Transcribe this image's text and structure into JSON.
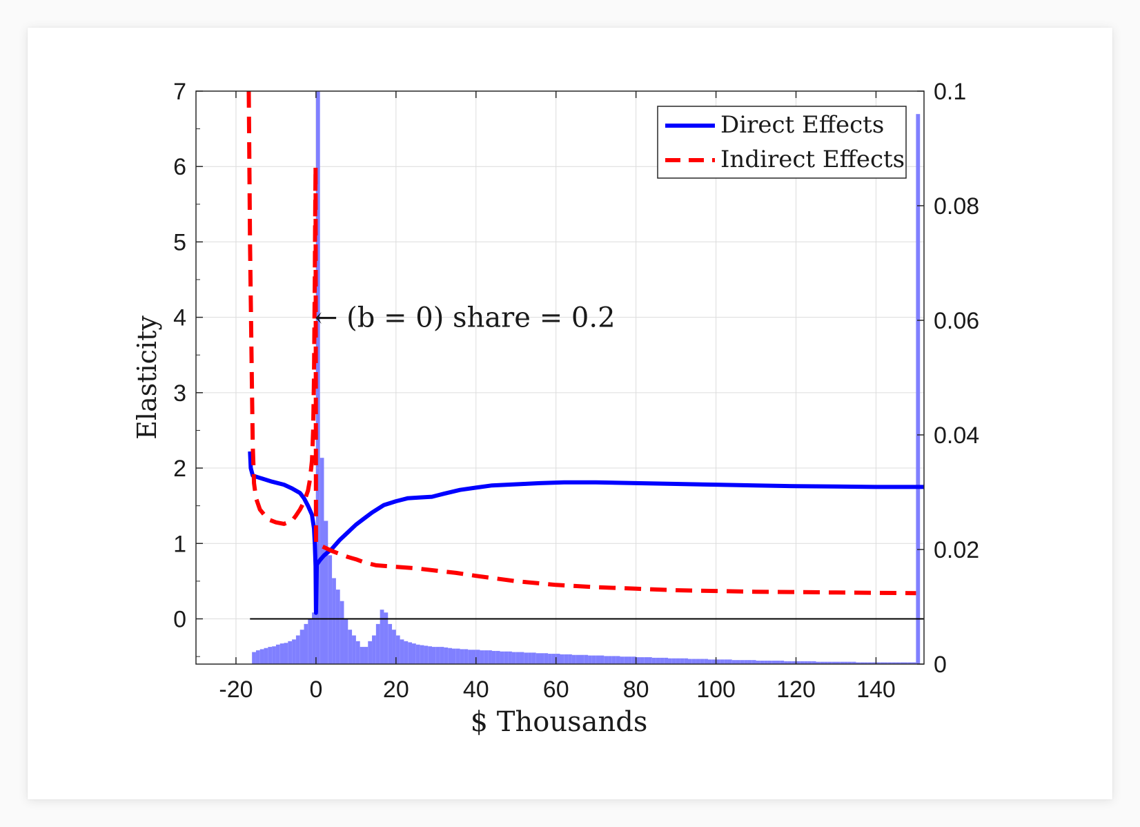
{
  "chart_data": {
    "type": "line",
    "xlabel": "$ Thousands",
    "ylabel": "Elasticity",
    "xlim": [
      -30,
      152
    ],
    "ylim": [
      -0.6,
      7
    ],
    "y2lim": [
      0,
      0.1
    ],
    "grid": true,
    "legend_position": "top-right",
    "x_ticks": [
      "-20",
      "0",
      "20",
      "40",
      "60",
      "80",
      "100",
      "120",
      "140"
    ],
    "y_ticks": [
      "0",
      "1",
      "2",
      "3",
      "4",
      "5",
      "6",
      "7"
    ],
    "y2_ticks": [
      "0",
      "0.02",
      "0.04",
      "0.06",
      "0.08",
      "0.1"
    ],
    "annotation": {
      "text": "← (b = 0) share = 0.2",
      "x": 0,
      "y": 4
    },
    "zero_line": {
      "y": 0,
      "x": [
        -16.5,
        152
      ]
    },
    "colors": {
      "direct": "#0000ff",
      "indirect": "#ff0000",
      "histogram": "#8080ff",
      "zero_line": "#000000"
    },
    "series": [
      {
        "name": "Direct Effects",
        "style": "solid",
        "x": [
          -16.5,
          -16.3,
          -15.8,
          -14,
          -11,
          -8,
          -6,
          -4,
          -3,
          -2,
          -1,
          -0.5,
          -0.3,
          -0.1,
          0,
          0.2,
          1,
          2,
          4,
          6,
          8,
          10,
          12,
          14,
          17,
          20,
          23,
          26,
          29,
          32,
          36,
          40,
          44,
          48,
          52,
          56,
          62,
          70,
          80,
          90,
          100,
          110,
          120,
          130,
          140,
          152
        ],
        "values": [
          2.22,
          2.0,
          1.9,
          1.87,
          1.82,
          1.78,
          1.73,
          1.67,
          1.6,
          1.5,
          1.38,
          1.2,
          1.0,
          0.7,
          0.08,
          0.72,
          0.78,
          0.84,
          0.93,
          1.05,
          1.15,
          1.25,
          1.33,
          1.41,
          1.51,
          1.56,
          1.6,
          1.61,
          1.62,
          1.66,
          1.71,
          1.74,
          1.77,
          1.78,
          1.79,
          1.8,
          1.81,
          1.81,
          1.8,
          1.79,
          1.78,
          1.77,
          1.76,
          1.755,
          1.75,
          1.75
        ]
      },
      {
        "name": "Indirect Effects",
        "style": "dashed",
        "x": [
          -16.8,
          -16.5,
          -16,
          -15.8,
          -15.5,
          -15,
          -14,
          -12,
          -10,
          -8,
          -6,
          -5,
          -4,
          -3,
          -2,
          -1.5,
          -1,
          -0.7,
          -0.5,
          -0.3,
          -0.2,
          -0.1,
          0,
          2,
          4,
          6,
          8,
          10,
          12,
          15,
          20,
          25,
          30,
          35,
          40,
          50,
          60,
          70,
          80,
          90,
          100,
          110,
          120,
          130,
          140,
          150
        ],
        "values": [
          7.0,
          5.0,
          3.0,
          2.3,
          1.8,
          1.6,
          1.45,
          1.32,
          1.28,
          1.26,
          1.3,
          1.37,
          1.45,
          1.55,
          1.7,
          1.85,
          2.1,
          2.5,
          3.2,
          4.5,
          5.3,
          6.0,
          1.0,
          0.95,
          0.9,
          0.86,
          0.82,
          0.79,
          0.75,
          0.71,
          0.69,
          0.67,
          0.64,
          0.61,
          0.57,
          0.5,
          0.45,
          0.42,
          0.4,
          0.38,
          0.37,
          0.36,
          0.355,
          0.35,
          0.345,
          0.34
        ]
      },
      {
        "type": "histogram",
        "axis": "right",
        "bin_width": 1,
        "x": [
          -16,
          -15,
          -14,
          -13,
          -12,
          -11,
          -10,
          -9,
          -8,
          -7,
          -6,
          -5,
          -4,
          -3,
          -2,
          -1,
          0,
          1,
          2,
          3,
          4,
          5,
          6,
          7,
          8,
          9,
          10,
          11,
          12,
          13,
          14,
          15,
          16,
          17,
          18,
          19,
          20,
          21,
          22,
          23,
          24,
          25,
          26,
          27,
          28,
          29,
          30,
          31,
          32,
          33,
          34,
          35,
          36,
          37,
          38,
          39,
          40,
          41,
          42,
          43,
          44,
          45,
          46,
          47,
          48,
          49,
          50,
          51,
          52,
          53,
          54,
          55,
          56,
          57,
          58,
          59,
          60,
          61,
          62,
          63,
          64,
          65,
          66,
          67,
          68,
          69,
          70,
          71,
          72,
          73,
          74,
          75,
          76,
          77,
          78,
          79,
          80,
          81,
          82,
          83,
          84,
          85,
          86,
          87,
          88,
          89,
          90,
          91,
          92,
          93,
          94,
          95,
          96,
          97,
          98,
          99,
          100,
          101,
          102,
          103,
          104,
          105,
          106,
          107,
          108,
          109,
          110,
          111,
          112,
          113,
          114,
          115,
          116,
          117,
          118,
          119,
          120,
          121,
          122,
          123,
          124,
          125,
          126,
          127,
          128,
          129,
          130,
          131,
          132,
          133,
          134,
          135,
          136,
          137,
          138,
          139,
          140,
          141,
          142,
          143,
          144,
          145,
          146,
          147,
          148,
          149,
          150
        ],
        "values": [
          0.0021,
          0.0024,
          0.0026,
          0.0028,
          0.003,
          0.0031,
          0.0034,
          0.0036,
          0.0037,
          0.004,
          0.0043,
          0.005,
          0.006,
          0.007,
          0.008,
          0.009,
          0.1,
          0.036,
          0.025,
          0.019,
          0.015,
          0.013,
          0.011,
          0.008,
          0.006,
          0.005,
          0.004,
          0.003,
          0.003,
          0.004,
          0.005,
          0.007,
          0.0095,
          0.009,
          0.007,
          0.006,
          0.005,
          0.0043,
          0.004,
          0.0038,
          0.0036,
          0.0034,
          0.0033,
          0.0032,
          0.0031,
          0.003,
          0.003,
          0.003,
          0.0029,
          0.0028,
          0.0027,
          0.0027,
          0.0026,
          0.0026,
          0.0025,
          0.0025,
          0.0025,
          0.0024,
          0.0024,
          0.0024,
          0.0023,
          0.0023,
          0.0022,
          0.0022,
          0.0022,
          0.0021,
          0.0021,
          0.0021,
          0.002,
          0.002,
          0.002,
          0.0019,
          0.0019,
          0.0019,
          0.0018,
          0.0018,
          0.0018,
          0.0017,
          0.0017,
          0.0017,
          0.0016,
          0.0016,
          0.0016,
          0.0016,
          0.0015,
          0.0015,
          0.0015,
          0.0015,
          0.0014,
          0.0014,
          0.0014,
          0.0014,
          0.0013,
          0.0013,
          0.0013,
          0.0013,
          0.0012,
          0.0012,
          0.0012,
          0.0012,
          0.0011,
          0.0011,
          0.0011,
          0.0011,
          0.001,
          0.001,
          0.001,
          0.001,
          0.001,
          0.0009,
          0.0009,
          0.0009,
          0.0009,
          0.0009,
          0.0008,
          0.0008,
          0.0008,
          0.0008,
          0.0008,
          0.0008,
          0.0007,
          0.0007,
          0.0007,
          0.0007,
          0.0007,
          0.0007,
          0.0006,
          0.0006,
          0.0006,
          0.0006,
          0.0006,
          0.0006,
          0.0006,
          0.0005,
          0.0005,
          0.0005,
          0.0005,
          0.0005,
          0.0005,
          0.0005,
          0.0005,
          0.0004,
          0.0004,
          0.0004,
          0.0004,
          0.0004,
          0.0004,
          0.0004,
          0.0004,
          0.0004,
          0.0004,
          0.0003,
          0.0003,
          0.0003,
          0.0003,
          0.0003,
          0.0003,
          0.0003,
          0.0003,
          0.0003,
          0.0003,
          0.0003,
          0.0003,
          0.0003,
          0.0003,
          0.0003,
          0.096
        ]
      }
    ]
  }
}
